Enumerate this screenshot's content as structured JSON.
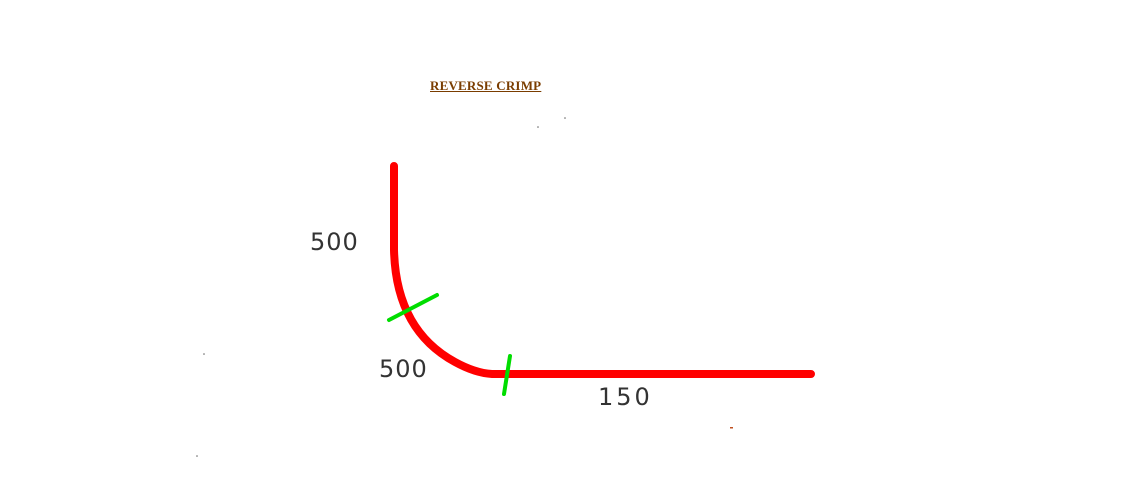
{
  "diagram": {
    "title": "REVERSE CRIMP",
    "dimensions": {
      "vertical_leg": "500",
      "bend_radius": "500",
      "horizontal_leg": "150"
    },
    "colors": {
      "profile": "#ff0000",
      "tangent_marks": "#00dd00",
      "title": "#7a3d00",
      "dimension_text": "#333333"
    }
  }
}
